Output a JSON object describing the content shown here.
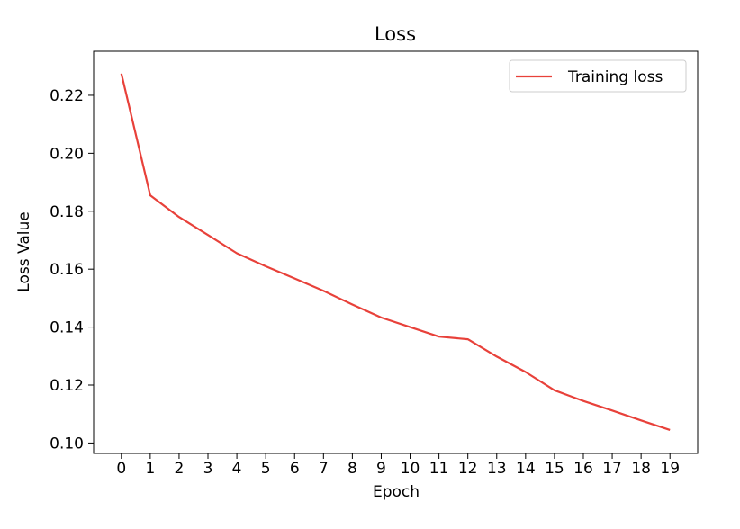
{
  "chart_data": {
    "type": "line",
    "title": "Loss",
    "xlabel": "Epoch",
    "ylabel": "Loss Value",
    "x": [
      0,
      1,
      2,
      3,
      4,
      5,
      6,
      7,
      8,
      9,
      10,
      11,
      12,
      13,
      14,
      15,
      16,
      17,
      18,
      19
    ],
    "series": [
      {
        "name": "Training loss",
        "color": "#e8413a",
        "values": [
          0.2275,
          0.1855,
          0.178,
          0.1718,
          0.1655,
          0.161,
          0.1568,
          0.1525,
          0.1478,
          0.1433,
          0.14,
          0.1367,
          0.1358,
          0.1298,
          0.1245,
          0.1182,
          0.1145,
          0.1112,
          0.1078,
          0.1045
        ]
      }
    ],
    "xlim": [
      -0.96,
      19.96
    ],
    "ylim": [
      0.0964,
      0.2352
    ],
    "xticks": [
      "0",
      "1",
      "2",
      "3",
      "4",
      "5",
      "6",
      "7",
      "8",
      "9",
      "10",
      "11",
      "12",
      "13",
      "14",
      "15",
      "16",
      "17",
      "18",
      "19"
    ],
    "yticks": [
      "0.10",
      "0.12",
      "0.14",
      "0.16",
      "0.18",
      "0.20",
      "0.22"
    ],
    "grid": false,
    "legend_position": "top-right"
  }
}
